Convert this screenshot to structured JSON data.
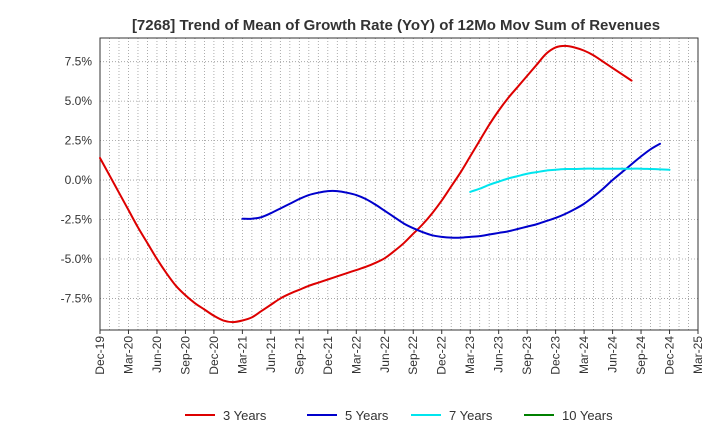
{
  "chart_data": {
    "type": "line",
    "title": "[7268]  Trend of Mean of Growth Rate (YoY) of 12Mo Mov Sum of Revenues",
    "xlabel": "",
    "ylabel": "",
    "ylim": [
      -9.5,
      9.0
    ],
    "yticks": [
      {
        "value": 7.5,
        "label": "7.5%"
      },
      {
        "value": 5.0,
        "label": "5.0%"
      },
      {
        "value": 2.5,
        "label": "2.5%"
      },
      {
        "value": 0.0,
        "label": "0.0%"
      },
      {
        "value": -2.5,
        "label": "-2.5%"
      },
      {
        "value": -5.0,
        "label": "-5.0%"
      },
      {
        "value": -7.5,
        "label": "-7.5%"
      }
    ],
    "x_start": "Dec-19",
    "x_months": 63,
    "xticks": [
      "Dec-19",
      "Mar-20",
      "Jun-20",
      "Sep-20",
      "Dec-20",
      "Mar-21",
      "Jun-21",
      "Sep-21",
      "Dec-21",
      "Mar-22",
      "Jun-22",
      "Sep-22",
      "Dec-22",
      "Mar-23",
      "Jun-23",
      "Sep-23",
      "Dec-23",
      "Mar-24",
      "Jun-24",
      "Sep-24",
      "Dec-24",
      "Mar-25"
    ],
    "grid": true,
    "legend_position": "bottom",
    "series": [
      {
        "name": "3 Years",
        "color": "#dd0000",
        "start_index": 0,
        "values": [
          1.4,
          0.3,
          -0.8,
          -1.9,
          -3.0,
          -4.0,
          -5.0,
          -5.9,
          -6.7,
          -7.3,
          -7.8,
          -8.2,
          -8.6,
          -8.9,
          -9.0,
          -8.9,
          -8.7,
          -8.3,
          -7.9,
          -7.5,
          -7.2,
          -6.95,
          -6.7,
          -6.5,
          -6.3,
          -6.1,
          -5.9,
          -5.7,
          -5.5,
          -5.25,
          -4.95,
          -4.5,
          -4.0,
          -3.4,
          -2.8,
          -2.1,
          -1.3,
          -0.4,
          0.5,
          1.5,
          2.5,
          3.5,
          4.4,
          5.2,
          5.9,
          6.6,
          7.3,
          8.0,
          8.4,
          8.5,
          8.4,
          8.2,
          7.9,
          7.5,
          7.1,
          6.7,
          6.3
        ]
      },
      {
        "name": "5 Years",
        "color": "#0000cc",
        "start_index": 15,
        "values": [
          -2.45,
          -2.45,
          -2.35,
          -2.1,
          -1.8,
          -1.5,
          -1.2,
          -0.95,
          -0.8,
          -0.7,
          -0.7,
          -0.8,
          -0.95,
          -1.2,
          -1.55,
          -1.95,
          -2.35,
          -2.75,
          -3.05,
          -3.3,
          -3.5,
          -3.6,
          -3.65,
          -3.65,
          -3.6,
          -3.55,
          -3.45,
          -3.35,
          -3.25,
          -3.1,
          -2.95,
          -2.8,
          -2.6,
          -2.4,
          -2.15,
          -1.85,
          -1.5,
          -1.05,
          -0.55,
          0.0,
          0.5,
          1.0,
          1.5,
          1.95,
          2.3
        ]
      },
      {
        "name": "7 Years",
        "color": "#00e5ee",
        "start_index": 39,
        "values": [
          -0.75,
          -0.55,
          -0.3,
          -0.1,
          0.1,
          0.25,
          0.4,
          0.5,
          0.6,
          0.65,
          0.7,
          0.7,
          0.72,
          0.72,
          0.72,
          0.72,
          0.72,
          0.72,
          0.72,
          0.7,
          0.68,
          0.65
        ]
      },
      {
        "name": "10 Years",
        "color": "#008000",
        "start_index": 0,
        "values": []
      }
    ]
  }
}
